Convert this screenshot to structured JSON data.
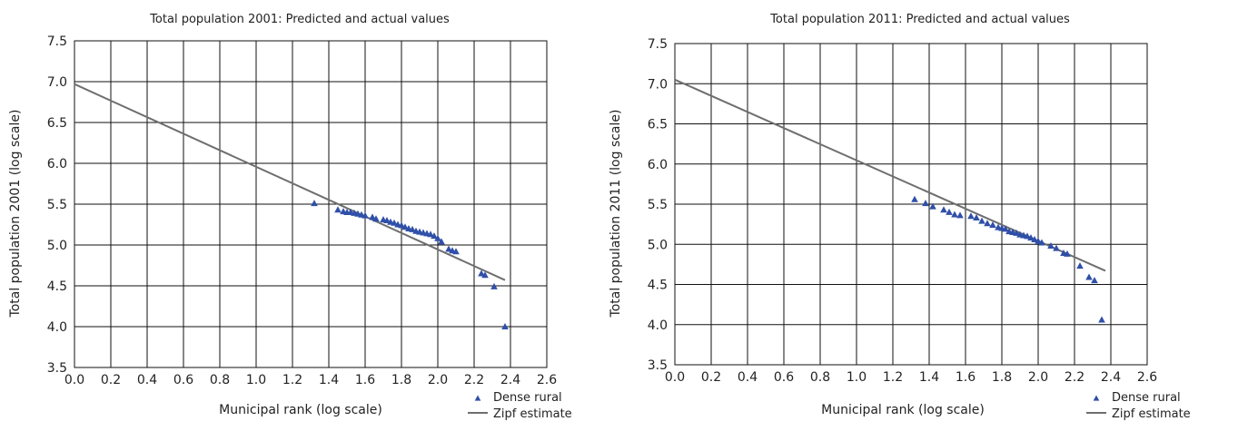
{
  "chart_data": [
    {
      "type": "scatter",
      "title": "Total population 2001: Predicted and actual values",
      "xlabel": "Municipal rank (log scale)",
      "ylabel": "Total population 2001 (log scale)",
      "xlim": [
        0.0,
        2.6
      ],
      "ylim": [
        3.5,
        7.5
      ],
      "xticks": [
        "0.0",
        "0.2",
        "0.4",
        "0.6",
        "0.8",
        "1.0",
        "1.2",
        "1.4",
        "1.6",
        "1.8",
        "2.0",
        "2.2",
        "2.4",
        "2.6"
      ],
      "yticks": [
        "3.5",
        "4.0",
        "4.5",
        "5.0",
        "5.5",
        "6.0",
        "6.5",
        "7.0",
        "7.5"
      ],
      "grid": true,
      "legend_position": "bottom-right",
      "series": [
        {
          "name": "Dense rural",
          "kind": "points",
          "marker": "triangle",
          "color": "#2f4fa8",
          "x": [
            1.32,
            1.45,
            1.48,
            1.5,
            1.52,
            1.54,
            1.56,
            1.58,
            1.6,
            1.64,
            1.66,
            1.7,
            1.72,
            1.74,
            1.76,
            1.78,
            1.8,
            1.82,
            1.84,
            1.86,
            1.88,
            1.9,
            1.92,
            1.94,
            1.96,
            1.98,
            2.0,
            2.02,
            2.06,
            2.08,
            2.1,
            2.24,
            2.26,
            2.31,
            2.37
          ],
          "y": [
            5.51,
            5.43,
            5.41,
            5.4,
            5.4,
            5.39,
            5.38,
            5.37,
            5.36,
            5.34,
            5.32,
            5.31,
            5.3,
            5.28,
            5.27,
            5.25,
            5.24,
            5.22,
            5.2,
            5.19,
            5.17,
            5.16,
            5.15,
            5.14,
            5.13,
            5.11,
            5.08,
            5.04,
            4.95,
            4.93,
            4.92,
            4.65,
            4.63,
            4.49,
            4.0
          ]
        },
        {
          "name": "Zipf estimate",
          "kind": "line",
          "color": "#6e6e6e",
          "x": [
            0.0,
            2.37
          ],
          "y": [
            6.97,
            4.57
          ]
        }
      ]
    },
    {
      "type": "scatter",
      "title": "Total population 2011: Predicted and actual values",
      "xlabel": "Municipal rank (log scale)",
      "ylabel": "Total population 2011 (log scale)",
      "xlim": [
        0.0,
        2.6
      ],
      "ylim": [
        3.5,
        7.5
      ],
      "xticks": [
        "0.0",
        "0.2",
        "0.4",
        "0.6",
        "0.8",
        "1.0",
        "1.2",
        "1.4",
        "1.6",
        "1.8",
        "2.0",
        "2.2",
        "2.4",
        "2.6"
      ],
      "yticks": [
        "3.5",
        "4.0",
        "4.5",
        "5.0",
        "5.5",
        "6.0",
        "6.5",
        "7.0",
        "7.5"
      ],
      "grid": true,
      "legend_position": "bottom-right",
      "series": [
        {
          "name": "Dense rural",
          "kind": "points",
          "marker": "triangle",
          "color": "#2f4fa8",
          "x": [
            1.32,
            1.38,
            1.42,
            1.48,
            1.51,
            1.54,
            1.57,
            1.63,
            1.66,
            1.69,
            1.72,
            1.75,
            1.78,
            1.8,
            1.82,
            1.84,
            1.86,
            1.88,
            1.9,
            1.92,
            1.94,
            1.96,
            1.98,
            2.0,
            2.02,
            2.07,
            2.1,
            2.14,
            2.16,
            2.23,
            2.28,
            2.31,
            2.35
          ],
          "y": [
            5.56,
            5.51,
            5.47,
            5.43,
            5.4,
            5.37,
            5.36,
            5.35,
            5.33,
            5.29,
            5.26,
            5.24,
            5.21,
            5.2,
            5.19,
            5.16,
            5.15,
            5.14,
            5.12,
            5.11,
            5.1,
            5.08,
            5.06,
            5.04,
            5.02,
            4.98,
            4.95,
            4.89,
            4.88,
            4.73,
            4.59,
            4.55,
            4.06
          ]
        },
        {
          "name": "Zipf estimate",
          "kind": "line",
          "color": "#6e6e6e",
          "x": [
            0.0,
            2.37
          ],
          "y": [
            7.05,
            4.67
          ]
        }
      ]
    }
  ]
}
